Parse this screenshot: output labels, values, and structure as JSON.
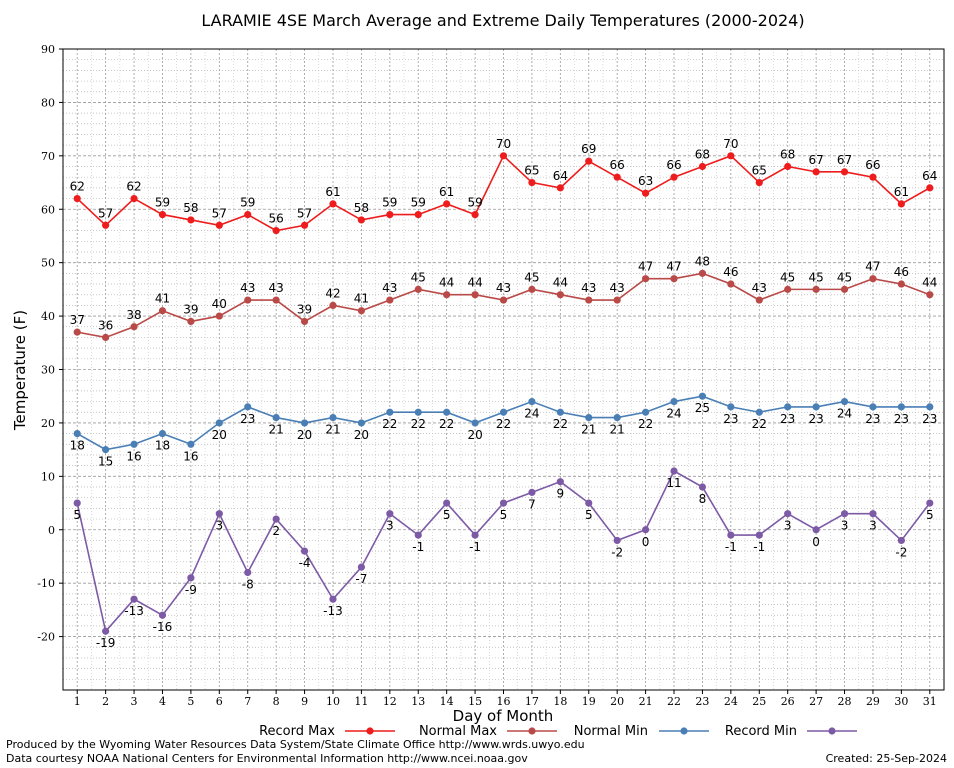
{
  "chart_data": {
    "type": "line",
    "title": "LARAMIE 4SE March Average and Extreme Daily Temperatures (2000-2024)",
    "xlabel": "Day of Month",
    "ylabel": "Temperature (F)",
    "ylim": [
      -30,
      90
    ],
    "yticks": [
      -20,
      -10,
      0,
      10,
      20,
      30,
      40,
      50,
      60,
      70,
      80,
      90
    ],
    "x": [
      1,
      2,
      3,
      4,
      5,
      6,
      7,
      8,
      9,
      10,
      11,
      12,
      13,
      14,
      15,
      16,
      17,
      18,
      19,
      20,
      21,
      22,
      23,
      24,
      25,
      26,
      27,
      28,
      29,
      30,
      31
    ],
    "grid": true,
    "legend_position": "bottom",
    "series": [
      {
        "name": "Record Max",
        "color": "#ee1c1c",
        "label_pos": "above",
        "values": [
          62,
          57,
          62,
          59,
          58,
          57,
          59,
          56,
          57,
          61,
          58,
          59,
          59,
          61,
          59,
          70,
          65,
          64,
          69,
          66,
          63,
          66,
          68,
          70,
          65,
          68,
          67,
          67,
          66,
          61,
          64
        ]
      },
      {
        "name": "Normal Max",
        "color": "#b94a48",
        "label_pos": "above",
        "values": [
          37,
          36,
          38,
          41,
          39,
          40,
          43,
          43,
          39,
          42,
          41,
          43,
          45,
          44,
          44,
          43,
          45,
          44,
          43,
          43,
          47,
          47,
          48,
          46,
          43,
          45,
          45,
          45,
          47,
          46,
          44
        ]
      },
      {
        "name": "Normal Min",
        "color": "#4a7fb5",
        "label_pos": "below",
        "values": [
          18,
          15,
          16,
          18,
          16,
          20,
          23,
          21,
          20,
          21,
          20,
          22,
          22,
          22,
          20,
          22,
          24,
          22,
          21,
          21,
          22,
          24,
          25,
          23,
          22,
          23,
          23,
          24,
          23,
          23,
          23
        ]
      },
      {
        "name": "Record Min",
        "color": "#7d5aa6",
        "label_pos": "below",
        "values": [
          5,
          -19,
          -13,
          -16,
          -9,
          3,
          -8,
          2,
          -4,
          -13,
          -7,
          3,
          -1,
          5,
          -1,
          5,
          7,
          9,
          5,
          -2,
          0,
          11,
          8,
          -1,
          -1,
          3,
          0,
          3,
          3,
          -2,
          5
        ]
      }
    ]
  },
  "footer": {
    "line1": "Produced by the Wyoming Water Resources Data System/State Climate Office http://www.wrds.uwyo.edu",
    "line2": "Data courtesy NOAA National Centers for Environmental Information http://www.ncei.noaa.gov",
    "created": "Created:  25-Sep-2024"
  }
}
